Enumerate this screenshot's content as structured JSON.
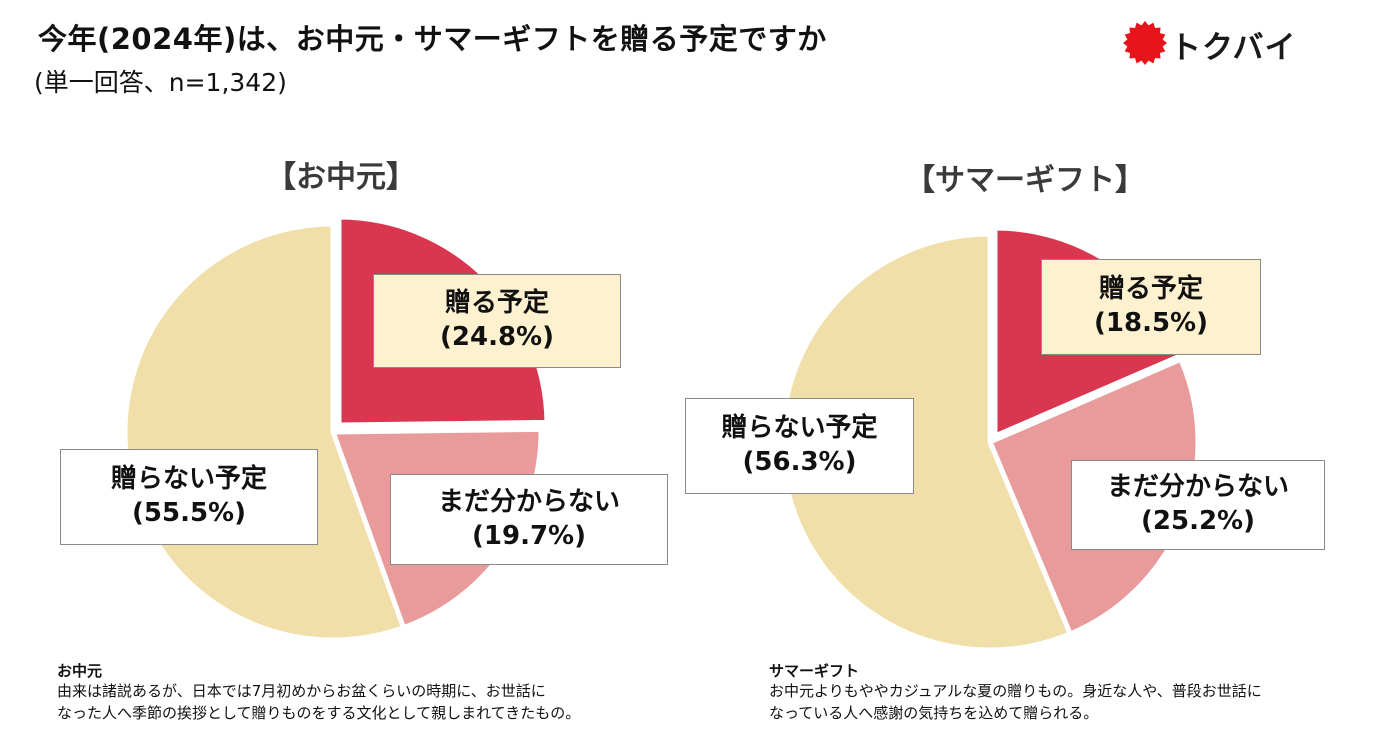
{
  "title": "今年(2024年)は、お中元・サマーギフトを贈る予定ですか",
  "subtitle": "(単一回答、n=1,342)",
  "logo": {
    "text": "トクバイ",
    "icon": "red-sun-badge-icon",
    "color": "#e8141b"
  },
  "colors": {
    "plan": "#d9364f",
    "unsure": "#e99a9a",
    "no_plan": "#f1dfa9"
  },
  "chart_data": [
    {
      "type": "pie",
      "title": "【お中元】",
      "slices": [
        {
          "category": "贈る予定",
          "value": 24.8,
          "value_label": "(24.8%)",
          "exploded": true
        },
        {
          "category": "まだ分からない",
          "value": 19.7,
          "value_label": "(19.7%)",
          "exploded": false
        },
        {
          "category": "贈らない予定",
          "value": 55.5,
          "value_label": "(55.5%)",
          "exploded": false
        }
      ]
    },
    {
      "type": "pie",
      "title": "【サマーギフト】",
      "slices": [
        {
          "category": "贈る予定",
          "value": 18.5,
          "value_label": "(18.5%)",
          "exploded": true
        },
        {
          "category": "まだ分からない",
          "value": 25.2,
          "value_label": "(25.2%)",
          "exploded": false
        },
        {
          "category": "贈らない予定",
          "value": 56.3,
          "value_label": "(56.3%)",
          "exploded": false
        }
      ]
    }
  ],
  "notes": [
    {
      "heading": "お中元",
      "lines": [
        "由来は諸説あるが、日本では7月初めからお盆くらいの時期に、お世話に",
        "なった人へ季節の挨拶として贈りものをする文化として親しまれてきたもの。"
      ]
    },
    {
      "heading": "サマーギフト",
      "lines": [
        "お中元よりもややカジュアルな夏の贈りもの。身近な人や、普段お世話に",
        "なっている人へ感謝の気持ちを込めて贈られる。"
      ]
    }
  ]
}
